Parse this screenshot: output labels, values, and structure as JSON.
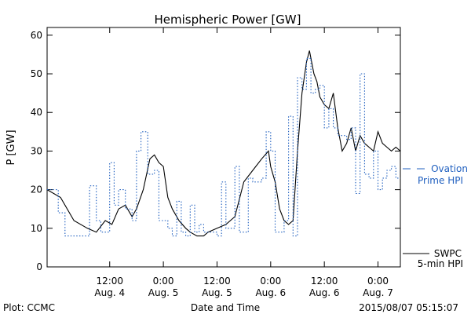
{
  "chart_data": {
    "type": "line",
    "title": "Hemispheric Power [GW]",
    "xlabel": "Date and Time",
    "ylabel": "P [GW]",
    "ylim": [
      0,
      62
    ],
    "xlim": [
      "2015-08-03 22:00",
      "2015-08-07 05:00"
    ],
    "y_ticks": [
      0,
      10,
      20,
      30,
      40,
      50,
      60
    ],
    "x_ticks": [
      {
        "time": "2015-08-04 12:00",
        "label1": "12:00",
        "label2": "Aug. 4"
      },
      {
        "time": "2015-08-05 00:00",
        "label1": "0:00",
        "label2": "Aug. 5"
      },
      {
        "time": "2015-08-05 12:00",
        "label1": "12:00",
        "label2": "Aug. 5"
      },
      {
        "time": "2015-08-06 00:00",
        "label1": "0:00",
        "label2": "Aug. 6"
      },
      {
        "time": "2015-08-06 12:00",
        "label1": "12:00",
        "label2": "Aug. 6"
      },
      {
        "time": "2015-08-07 00:00",
        "label1": "0:00",
        "label2": "Aug. 7"
      }
    ],
    "series": [
      {
        "name": "SWPC 5-min HPI",
        "style": "solid",
        "color": "#000000",
        "x": [
          "2015-08-03 22:00",
          "2015-08-04 01:00",
          "2015-08-04 04:00",
          "2015-08-04 07:00",
          "2015-08-04 09:00",
          "2015-08-04 11:00",
          "2015-08-04 12:30",
          "2015-08-04 14:00",
          "2015-08-04 15:30",
          "2015-08-04 17:00",
          "2015-08-04 18:00",
          "2015-08-04 19:30",
          "2015-08-04 21:00",
          "2015-08-04 22:00",
          "2015-08-04 23:00",
          "2015-08-05 00:00",
          "2015-08-05 01:00",
          "2015-08-05 02:00",
          "2015-08-05 03:30",
          "2015-08-05 05:00",
          "2015-08-05 06:00",
          "2015-08-05 07:30",
          "2015-08-05 09:00",
          "2015-08-05 10:00",
          "2015-08-05 12:00",
          "2015-08-05 14:00",
          "2015-08-05 16:00",
          "2015-08-05 18:00",
          "2015-08-05 20:00",
          "2015-08-05 22:00",
          "2015-08-05 23:30",
          "2015-08-06 00:00",
          "2015-08-06 01:00",
          "2015-08-06 02:00",
          "2015-08-06 03:00",
          "2015-08-06 04:00",
          "2015-08-06 05:00",
          "2015-08-06 06:00",
          "2015-08-06 07:00",
          "2015-08-06 08:00",
          "2015-08-06 08:40",
          "2015-08-06 09:00",
          "2015-08-06 09:40",
          "2015-08-06 10:20",
          "2015-08-06 11:00",
          "2015-08-06 12:00",
          "2015-08-06 13:00",
          "2015-08-06 14:00",
          "2015-08-06 15:00",
          "2015-08-06 16:00",
          "2015-08-06 17:00",
          "2015-08-06 18:00",
          "2015-08-06 19:00",
          "2015-08-06 20:00",
          "2015-08-06 21:00",
          "2015-08-06 22:00",
          "2015-08-06 23:00",
          "2015-08-07 00:00",
          "2015-08-07 01:00",
          "2015-08-07 02:00",
          "2015-08-07 03:00",
          "2015-08-07 04:00",
          "2015-08-07 05:00"
        ],
        "y": [
          20,
          18,
          12,
          10,
          9,
          12,
          11,
          15,
          16,
          13,
          15,
          20,
          28,
          29,
          27,
          26,
          18,
          15,
          12,
          10,
          9,
          8,
          8,
          9,
          10,
          11,
          13,
          22,
          25,
          28,
          30,
          26,
          22,
          15,
          12,
          11,
          12,
          30,
          45,
          53,
          56,
          54,
          50,
          48,
          44,
          42,
          41,
          45,
          36,
          30,
          32,
          36,
          30,
          34,
          32,
          31,
          30,
          35,
          32,
          31,
          30,
          31,
          30
        ]
      },
      {
        "name": "Ovation Prime HPI",
        "style": "dotted-step",
        "color": "#1f5fbf",
        "x": [
          "2015-08-03 22:00",
          "2015-08-04 00:30",
          "2015-08-04 02:00",
          "2015-08-04 04:00",
          "2015-08-04 06:00",
          "2015-08-04 07:30",
          "2015-08-04 09:00",
          "2015-08-04 10:00",
          "2015-08-04 11:00",
          "2015-08-04 12:00",
          "2015-08-04 13:00",
          "2015-08-04 14:00",
          "2015-08-04 15:30",
          "2015-08-04 17:00",
          "2015-08-04 18:00",
          "2015-08-04 19:00",
          "2015-08-04 20:30",
          "2015-08-04 22:00",
          "2015-08-04 23:00",
          "2015-08-05 01:00",
          "2015-08-05 02:00",
          "2015-08-05 03:00",
          "2015-08-05 04:00",
          "2015-08-05 05:00",
          "2015-08-05 06:00",
          "2015-08-05 07:00",
          "2015-08-05 08:00",
          "2015-08-05 09:00",
          "2015-08-05 11:00",
          "2015-08-05 12:00",
          "2015-08-05 13:00",
          "2015-08-05 14:00",
          "2015-08-05 15:00",
          "2015-08-05 16:00",
          "2015-08-05 17:00",
          "2015-08-05 18:00",
          "2015-08-05 19:00",
          "2015-08-05 20:00",
          "2015-08-05 21:00",
          "2015-08-05 22:00",
          "2015-08-05 23:00",
          "2015-08-06 00:00",
          "2015-08-06 01:00",
          "2015-08-06 02:00",
          "2015-08-06 03:00",
          "2015-08-06 04:00",
          "2015-08-06 05:00",
          "2015-08-06 06:00",
          "2015-08-06 07:00",
          "2015-08-06 08:00",
          "2015-08-06 09:00",
          "2015-08-06 10:00",
          "2015-08-06 11:00",
          "2015-08-06 12:00",
          "2015-08-06 13:00",
          "2015-08-06 14:00",
          "2015-08-06 15:00",
          "2015-08-06 16:00",
          "2015-08-06 17:00",
          "2015-08-06 18:00",
          "2015-08-06 19:00",
          "2015-08-06 20:00",
          "2015-08-06 21:00",
          "2015-08-06 22:00",
          "2015-08-06 23:00",
          "2015-08-07 00:00",
          "2015-08-07 01:00",
          "2015-08-07 02:00",
          "2015-08-07 03:00",
          "2015-08-07 04:00"
        ],
        "y": [
          20,
          14,
          8,
          8,
          8,
          21,
          12,
          9,
          9,
          27,
          16,
          20,
          15,
          12,
          30,
          35,
          24,
          25,
          12,
          10,
          8,
          17,
          9,
          8,
          16,
          9,
          11,
          9,
          9,
          8,
          22,
          10,
          10,
          26,
          9,
          9,
          23,
          22,
          22,
          23,
          35,
          30,
          9,
          9,
          12,
          39,
          8,
          49,
          46,
          54,
          45,
          46,
          47,
          36,
          41,
          36,
          34,
          34,
          33,
          36,
          19,
          50,
          24,
          23,
          30,
          20,
          23,
          25,
          26,
          23
        ]
      }
    ],
    "legend": {
      "placement": "right",
      "ovation_label1": "Ovation",
      "ovation_label2": "Prime HPI",
      "swpc_label1": "SWPC",
      "swpc_label2": "5-min HPI"
    },
    "footer": {
      "left": "Plot: CCMC",
      "right": "2015/08/07 05:15:07"
    },
    "grid": false
  }
}
